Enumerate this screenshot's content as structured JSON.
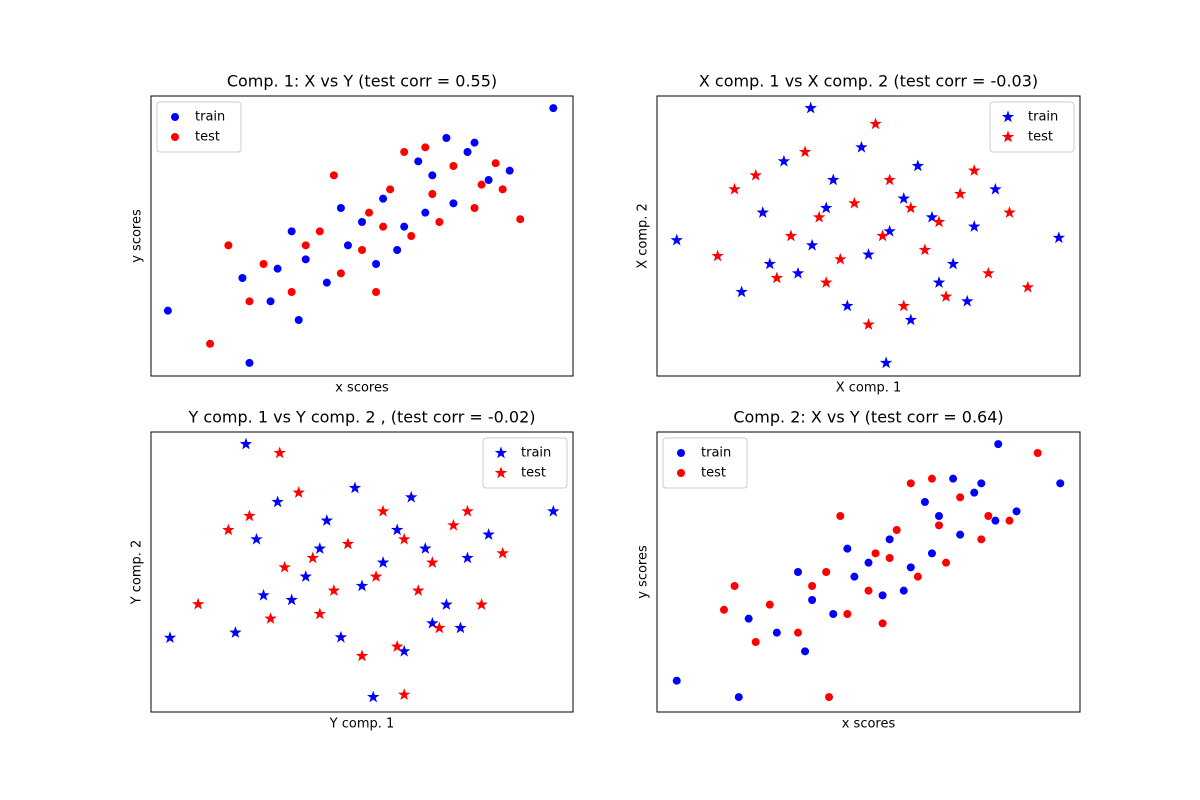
{
  "chart_data": [
    {
      "type": "scatter",
      "title": "Comp. 1: X vs Y (test corr = 0.55)",
      "xlabel": "x scores",
      "ylabel": "y scores",
      "xlim": [
        -3,
        3
      ],
      "ylim": [
        -3,
        3
      ],
      "legend": "upper left",
      "series": [
        {
          "name": "train",
          "color": "#0000ff",
          "marker": "o",
          "x": [
            2.72,
            -2.76,
            -1.6,
            -1.3,
            -0.8,
            -0.5,
            0.0,
            0.3,
            0.6,
            1.0,
            1.3,
            1.5,
            -1.0,
            0.2,
            0.8,
            1.8,
            -0.3,
            0.5,
            1.2,
            -1.7,
            -0.9,
            0.9,
            1.6,
            -0.2,
            -1.2,
            2.1
          ],
          "y": [
            2.74,
            -1.6,
            -2.72,
            -1.4,
            -0.5,
            -1.0,
            0.3,
            0.8,
            0.2,
            1.3,
            0.7,
            1.8,
            0.1,
            -0.6,
            1.6,
            1.2,
            0.6,
            -0.3,
            2.1,
            -0.9,
            -1.8,
            0.5,
            2.0,
            -0.2,
            -0.7,
            1.4
          ]
        },
        {
          "name": "test",
          "color": "#ff0000",
          "marker": "o",
          "x": [
            -2.16,
            2.25,
            1.9,
            -1.9,
            -1.4,
            -1.0,
            -0.6,
            -0.3,
            0.1,
            0.4,
            0.7,
            1.0,
            1.3,
            1.6,
            -0.4,
            0.2,
            0.6,
            1.1,
            -1.6,
            0.0,
            0.9,
            1.7,
            -0.8,
            0.3,
            2.0
          ],
          "y": [
            -2.31,
            0.36,
            1.56,
            -0.2,
            -0.6,
            -1.2,
            0.1,
            -0.8,
            0.5,
            1.0,
            0.0,
            0.9,
            1.5,
            0.6,
            1.3,
            -1.2,
            1.8,
            0.3,
            -1.4,
            -0.3,
            1.9,
            1.1,
            -0.2,
            0.2,
            1.0
          ]
        }
      ]
    },
    {
      "type": "scatter",
      "title": "X comp. 1 vs X comp. 2 (test corr = -0.03)",
      "xlabel": "X comp. 1",
      "ylabel": "X comp. 2",
      "xlim": [
        -3,
        3
      ],
      "ylim": [
        -3,
        3
      ],
      "legend": "upper right",
      "series": [
        {
          "name": "train",
          "color": "#0000ff",
          "marker": "*",
          "x": [
            -2.72,
            2.7,
            0.25,
            -0.82,
            -1.5,
            -1.0,
            -0.5,
            0.0,
            0.5,
            1.0,
            1.5,
            -1.2,
            -0.3,
            0.7,
            1.2,
            -0.8,
            0.3,
            1.8,
            -1.8,
            0.9,
            -0.1,
            0.6,
            -0.6,
            1.4,
            -1.4
          ],
          "y": [
            -0.09,
            -0.04,
            -2.72,
            2.74,
            0.5,
            -0.8,
            1.2,
            -0.4,
            0.8,
            -1.0,
            0.2,
            1.6,
            -1.5,
            1.5,
            -0.6,
            -0.2,
            0.1,
            1.0,
            -1.2,
            0.4,
            1.9,
            -1.8,
            0.6,
            -1.4,
            -0.6
          ]
        },
        {
          "name": "test",
          "color": "#ff0000",
          "marker": "*",
          "x": [
            2.26,
            -2.14,
            0.1,
            -1.6,
            -1.1,
            -0.6,
            -0.2,
            0.3,
            0.8,
            1.3,
            1.7,
            -0.9,
            0.5,
            -0.4,
            1.0,
            0.0,
            -1.3,
            1.5,
            0.6,
            -0.7,
            0.2,
            1.1,
            -1.9,
            2.0
          ],
          "y": [
            -1.1,
            -0.43,
            2.4,
            1.3,
            0.0,
            -1.0,
            0.7,
            1.2,
            -0.3,
            0.9,
            -0.8,
            1.8,
            -1.5,
            -0.5,
            0.3,
            -1.9,
            -0.9,
            1.4,
            0.6,
            0.4,
            0.0,
            -1.3,
            1.0,
            0.5
          ]
        }
      ]
    },
    {
      "type": "scatter",
      "title": "Y comp. 1 vs Y comp. 2 , (test corr = -0.02)",
      "xlabel": "Y comp. 1",
      "ylabel": "Y comp. 2",
      "xlim": [
        -3,
        3
      ],
      "ylim": [
        -3,
        3
      ],
      "legend": "upper right",
      "series": [
        {
          "name": "train",
          "color": "#0000ff",
          "marker": "*",
          "x": [
            -2.73,
            2.72,
            -1.65,
            0.16,
            -1.5,
            -1.0,
            -0.5,
            0.0,
            0.5,
            1.0,
            1.5,
            -1.2,
            -0.3,
            0.7,
            1.2,
            -0.8,
            0.3,
            1.8,
            -1.8,
            0.9,
            -0.1,
            0.6,
            -0.6,
            1.4,
            -1.4
          ],
          "y": [
            -1.41,
            1.3,
            2.74,
            -2.68,
            0.7,
            -0.6,
            1.1,
            -0.3,
            0.9,
            -1.1,
            0.3,
            1.5,
            -1.4,
            1.6,
            -0.7,
            -0.1,
            0.2,
            0.8,
            -1.3,
            0.5,
            1.8,
            -1.7,
            0.5,
            -1.2,
            -0.5
          ]
        },
        {
          "name": "test",
          "color": "#ff0000",
          "marker": "*",
          "x": [
            -2.33,
            0.6,
            -1.17,
            -1.6,
            -1.1,
            -0.6,
            -0.2,
            0.3,
            0.8,
            1.3,
            1.7,
            -0.9,
            0.5,
            -0.4,
            1.0,
            0.0,
            -1.3,
            1.5,
            0.6,
            -0.7,
            0.2,
            1.1,
            -1.9,
            2.0
          ],
          "y": [
            -0.69,
            -2.63,
            2.55,
            1.2,
            0.1,
            -0.9,
            0.6,
            1.3,
            -0.4,
            1.0,
            -0.7,
            1.7,
            -1.6,
            -0.4,
            0.2,
            -1.8,
            -1.0,
            1.3,
            0.7,
            0.3,
            -0.1,
            -1.2,
            0.9,
            0.4
          ]
        }
      ]
    },
    {
      "type": "scatter",
      "title": "Comp. 2: X vs Y (test corr = 0.64)",
      "xlabel": "x scores",
      "ylabel": "y scores",
      "xlim": [
        -3,
        3
      ],
      "ylim": [
        -3,
        3
      ],
      "legend": "upper left",
      "series": [
        {
          "name": "train",
          "color": "#0000ff",
          "marker": "o",
          "x": [
            -2.72,
            2.72,
            1.84,
            -1.84,
            -1.3,
            -0.8,
            -0.5,
            0.0,
            0.3,
            0.6,
            1.0,
            1.3,
            1.5,
            -1.0,
            0.2,
            0.8,
            1.8,
            -0.3,
            0.5,
            1.2,
            -1.7,
            -0.9,
            0.9,
            1.6,
            -0.2,
            2.1
          ],
          "y": [
            -2.33,
            1.9,
            2.74,
            -2.68,
            -1.3,
            -0.6,
            -0.9,
            0.2,
            0.7,
            0.1,
            1.2,
            0.8,
            1.7,
            0.0,
            -0.5,
            1.5,
            1.1,
            0.5,
            -0.4,
            2.0,
            -1.0,
            -1.7,
            0.4,
            1.9,
            -0.1,
            1.3
          ]
        },
        {
          "name": "test",
          "color": "#ff0000",
          "marker": "o",
          "x": [
            2.4,
            -0.56,
            -2.05,
            -1.9,
            -1.4,
            -1.0,
            -0.6,
            -0.3,
            0.1,
            0.4,
            0.7,
            1.0,
            1.3,
            1.6,
            -0.4,
            0.2,
            0.6,
            1.1,
            -1.6,
            0.0,
            0.9,
            1.7,
            -0.8,
            0.3,
            2.0
          ],
          "y": [
            2.55,
            -2.68,
            -0.81,
            -0.3,
            -0.7,
            -1.3,
            0.0,
            -0.9,
            0.4,
            0.9,
            -0.1,
            1.0,
            1.6,
            0.7,
            1.2,
            -1.1,
            1.9,
            0.2,
            -1.5,
            -0.4,
            2.0,
            1.2,
            -0.3,
            0.3,
            1.1
          ]
        }
      ]
    }
  ]
}
